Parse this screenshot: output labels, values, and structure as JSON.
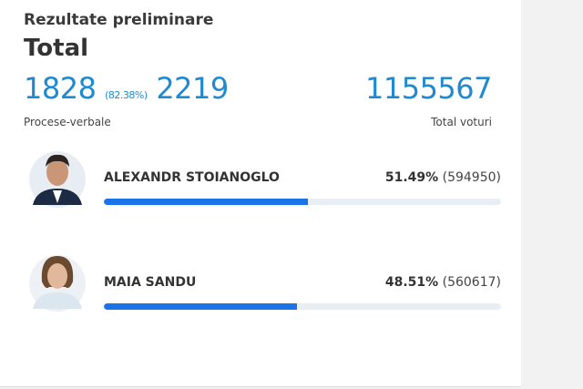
{
  "header": {
    "title": "Rezultate preliminare",
    "subtitle": "Total"
  },
  "stats": {
    "processed": "1828",
    "processed_share": "(82.38%)",
    "total_reports": "2219",
    "reports_label": "Procese-verbale",
    "votes": "1155567",
    "votes_label": "Total voturi"
  },
  "candidates": [
    {
      "name": "ALEXANDR STOIANOGLO",
      "share": {
        "value": 51.49,
        "label": "51.49%"
      },
      "votes": "(594950)"
    },
    {
      "name": "MAIA SANDU",
      "share": {
        "value": 48.51,
        "label": "48.51%"
      },
      "votes": "(560617)"
    }
  ]
}
